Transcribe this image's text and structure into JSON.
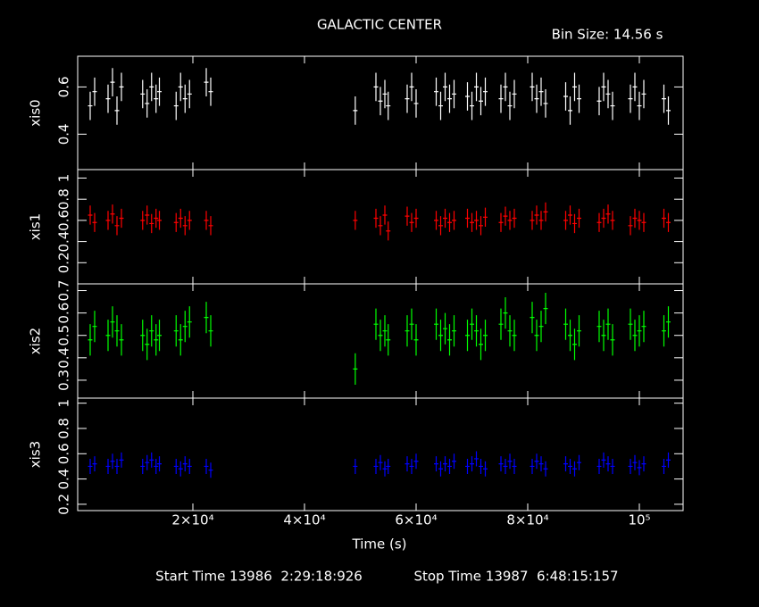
{
  "title": "GALACTIC CENTER",
  "bin_size": "Bin Size: 14.56 s",
  "x_label": "Time (s)",
  "start_time": "Start Time 13986  2:29:18:926",
  "stop_time": "Stop Time 13987  6:48:15:157",
  "x_axis": {
    "xlim": [
      -640,
      107840
    ],
    "xticks": [
      {
        "value": 20000,
        "label": "2×10⁴"
      },
      {
        "value": 40000,
        "label": "4×10⁴"
      },
      {
        "value": 60000,
        "label": "6×10⁴"
      },
      {
        "value": 80000,
        "label": "8×10⁴"
      },
      {
        "value": 100000,
        "label": "10⁵"
      }
    ]
  },
  "chart_data": [
    {
      "type": "errorbar",
      "y_label": "xis0",
      "color": "#ffffff",
      "ylim": [
        0.25,
        0.73
      ],
      "yticks": [
        0.4,
        0.6
      ],
      "error": 0.06,
      "x": [
        1600,
        2400,
        4800,
        5600,
        6400,
        7200,
        11000,
        11800,
        12600,
        13400,
        14000,
        17000,
        17800,
        18600,
        19400,
        22400,
        23200,
        49100,
        52800,
        53600,
        54400,
        55000,
        58400,
        59200,
        60000,
        63600,
        64400,
        65200,
        66000,
        66800,
        69200,
        70000,
        70800,
        71600,
        72400,
        75200,
        76000,
        76800,
        77600,
        80800,
        81600,
        82400,
        83200,
        86800,
        87600,
        88400,
        89200,
        92800,
        93600,
        94400,
        95200,
        98400,
        99200,
        100000,
        100800,
        104400,
        105200
      ],
      "values": [
        0.52,
        0.58,
        0.55,
        0.62,
        0.5,
        0.6,
        0.57,
        0.53,
        0.6,
        0.55,
        0.58,
        0.52,
        0.6,
        0.55,
        0.57,
        0.62,
        0.58,
        0.5,
        0.6,
        0.54,
        0.57,
        0.52,
        0.55,
        0.6,
        0.53,
        0.58,
        0.52,
        0.6,
        0.55,
        0.57,
        0.56,
        0.52,
        0.6,
        0.54,
        0.58,
        0.55,
        0.6,
        0.52,
        0.57,
        0.6,
        0.55,
        0.58,
        0.53,
        0.56,
        0.5,
        0.6,
        0.55,
        0.54,
        0.6,
        0.57,
        0.52,
        0.55,
        0.6,
        0.52,
        0.57,
        0.55,
        0.5
      ]
    },
    {
      "type": "errorbar",
      "y_label": "xis1",
      "color": "#ff0000",
      "ylim": [
        0,
        1.08
      ],
      "yticks": [
        0.2,
        0.4,
        0.6,
        0.8,
        1
      ],
      "error": 0.09,
      "x": [
        1600,
        2400,
        4800,
        5600,
        6400,
        7200,
        11000,
        11800,
        12600,
        13400,
        14000,
        17000,
        17800,
        18600,
        19400,
        22400,
        23200,
        49100,
        52800,
        53600,
        54400,
        55000,
        58400,
        59200,
        60000,
        63600,
        64400,
        65200,
        66000,
        66800,
        69200,
        70000,
        70800,
        71600,
        72400,
        75200,
        76000,
        76800,
        77600,
        80800,
        81600,
        82400,
        83200,
        86800,
        87600,
        88400,
        89200,
        92800,
        93600,
        94400,
        95200,
        98400,
        99200,
        100000,
        100800,
        104400,
        105200
      ],
      "values": [
        0.65,
        0.58,
        0.6,
        0.66,
        0.55,
        0.62,
        0.6,
        0.65,
        0.57,
        0.62,
        0.6,
        0.58,
        0.62,
        0.55,
        0.6,
        0.6,
        0.55,
        0.6,
        0.62,
        0.55,
        0.65,
        0.5,
        0.64,
        0.58,
        0.62,
        0.6,
        0.55,
        0.62,
        0.58,
        0.6,
        0.62,
        0.58,
        0.6,
        0.55,
        0.63,
        0.58,
        0.64,
        0.6,
        0.62,
        0.6,
        0.65,
        0.6,
        0.68,
        0.6,
        0.65,
        0.57,
        0.62,
        0.58,
        0.62,
        0.66,
        0.6,
        0.55,
        0.62,
        0.6,
        0.58,
        0.62,
        0.58
      ]
    },
    {
      "type": "errorbar",
      "y_label": "xis2",
      "color": "#00ff00",
      "ylim": [
        0.22,
        0.73
      ],
      "yticks": [
        0.3,
        0.4,
        0.5,
        0.6,
        0.7
      ],
      "error": 0.07,
      "x": [
        1600,
        2400,
        4800,
        5600,
        6400,
        7200,
        11000,
        11800,
        12600,
        13400,
        14000,
        17000,
        17800,
        18600,
        19400,
        22400,
        23200,
        49100,
        52800,
        53600,
        54400,
        55000,
        58400,
        59200,
        60000,
        63600,
        64400,
        65200,
        66000,
        66800,
        69200,
        70000,
        70800,
        71600,
        72400,
        75200,
        76000,
        76800,
        77600,
        80800,
        81600,
        82400,
        83200,
        86800,
        87600,
        88400,
        89200,
        92800,
        93600,
        94400,
        95200,
        98400,
        99200,
        100000,
        100800,
        104400,
        105200
      ],
      "values": [
        0.48,
        0.54,
        0.5,
        0.56,
        0.52,
        0.48,
        0.5,
        0.46,
        0.52,
        0.48,
        0.5,
        0.52,
        0.48,
        0.54,
        0.56,
        0.58,
        0.52,
        0.35,
        0.55,
        0.5,
        0.52,
        0.48,
        0.52,
        0.55,
        0.48,
        0.55,
        0.5,
        0.53,
        0.48,
        0.52,
        0.5,
        0.55,
        0.52,
        0.46,
        0.5,
        0.55,
        0.6,
        0.52,
        0.5,
        0.58,
        0.5,
        0.54,
        0.62,
        0.55,
        0.5,
        0.46,
        0.52,
        0.54,
        0.5,
        0.55,
        0.48,
        0.55,
        0.5,
        0.52,
        0.54,
        0.52,
        0.56
      ]
    },
    {
      "type": "errorbar",
      "y_label": "xis3",
      "color": "#0000ff",
      "ylim": [
        0.15,
        1.04
      ],
      "yticks": [
        0.2,
        0.4,
        0.6,
        0.8,
        1
      ],
      "error": 0.06,
      "x": [
        1600,
        2400,
        4800,
        5600,
        6400,
        7200,
        11000,
        11800,
        12600,
        13400,
        14000,
        17000,
        17800,
        18600,
        19400,
        22400,
        23200,
        49100,
        52800,
        53600,
        54400,
        55000,
        58400,
        59200,
        60000,
        63600,
        64400,
        65200,
        66000,
        66800,
        69200,
        70000,
        70800,
        71600,
        72400,
        75200,
        76000,
        76800,
        77600,
        80800,
        81600,
        82400,
        83200,
        86800,
        87600,
        88400,
        89200,
        92800,
        93600,
        94400,
        95200,
        98400,
        99200,
        100000,
        100800,
        104400,
        105200
      ],
      "values": [
        0.5,
        0.52,
        0.5,
        0.54,
        0.5,
        0.55,
        0.5,
        0.53,
        0.55,
        0.5,
        0.52,
        0.5,
        0.48,
        0.52,
        0.5,
        0.5,
        0.47,
        0.5,
        0.5,
        0.53,
        0.48,
        0.5,
        0.52,
        0.5,
        0.54,
        0.52,
        0.48,
        0.52,
        0.5,
        0.54,
        0.5,
        0.52,
        0.56,
        0.5,
        0.48,
        0.52,
        0.5,
        0.54,
        0.5,
        0.5,
        0.54,
        0.52,
        0.48,
        0.52,
        0.5,
        0.48,
        0.53,
        0.5,
        0.55,
        0.52,
        0.5,
        0.5,
        0.53,
        0.49,
        0.52,
        0.5,
        0.55
      ]
    }
  ]
}
